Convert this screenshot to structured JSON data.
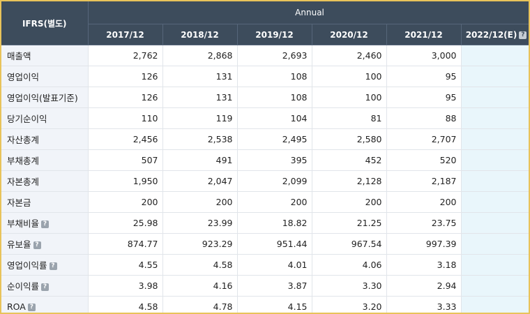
{
  "header": {
    "corner_label": "IFRS(별도)",
    "period_group": "Annual",
    "years": [
      "2017/12",
      "2018/12",
      "2019/12",
      "2020/12",
      "2021/12"
    ],
    "estimate_year": "2022/12(E)",
    "help_glyph": "?"
  },
  "rows": [
    {
      "label": "매출액",
      "help": false,
      "values": [
        "2,762",
        "2,868",
        "2,693",
        "2,460",
        "3,000"
      ],
      "estimate": ""
    },
    {
      "label": "영업이익",
      "help": false,
      "values": [
        "126",
        "131",
        "108",
        "100",
        "95"
      ],
      "estimate": ""
    },
    {
      "label": "영업이익(발표기준)",
      "help": false,
      "values": [
        "126",
        "131",
        "108",
        "100",
        "95"
      ],
      "estimate": ""
    },
    {
      "label": "당기순이익",
      "help": false,
      "values": [
        "110",
        "119",
        "104",
        "81",
        "88"
      ],
      "estimate": ""
    },
    {
      "label": "자산총계",
      "help": false,
      "values": [
        "2,456",
        "2,538",
        "2,495",
        "2,580",
        "2,707"
      ],
      "estimate": ""
    },
    {
      "label": "부채총계",
      "help": false,
      "values": [
        "507",
        "491",
        "395",
        "452",
        "520"
      ],
      "estimate": ""
    },
    {
      "label": "자본총계",
      "help": false,
      "values": [
        "1,950",
        "2,047",
        "2,099",
        "2,128",
        "2,187"
      ],
      "estimate": ""
    },
    {
      "label": "자본금",
      "help": false,
      "values": [
        "200",
        "200",
        "200",
        "200",
        "200"
      ],
      "estimate": ""
    },
    {
      "label": "부채비율",
      "help": true,
      "values": [
        "25.98",
        "23.99",
        "18.82",
        "21.25",
        "23.75"
      ],
      "estimate": ""
    },
    {
      "label": "유보율",
      "help": true,
      "values": [
        "874.77",
        "923.29",
        "951.44",
        "967.54",
        "997.39"
      ],
      "estimate": ""
    },
    {
      "label": "영업이익률",
      "help": true,
      "values": [
        "4.55",
        "4.58",
        "4.01",
        "4.06",
        "3.18"
      ],
      "estimate": ""
    },
    {
      "label": "순이익률",
      "help": true,
      "values": [
        "3.98",
        "4.16",
        "3.87",
        "3.30",
        "2.94"
      ],
      "estimate": ""
    },
    {
      "label": "ROA",
      "help": true,
      "values": [
        "4.58",
        "4.78",
        "4.15",
        "3.20",
        "3.33"
      ],
      "estimate": ""
    }
  ],
  "colors": {
    "header_bg": "#3d4c5c",
    "label_bg": "#f1f4f9",
    "estimate_bg": "#e9f6fb",
    "frame_border": "#e8c35a"
  }
}
